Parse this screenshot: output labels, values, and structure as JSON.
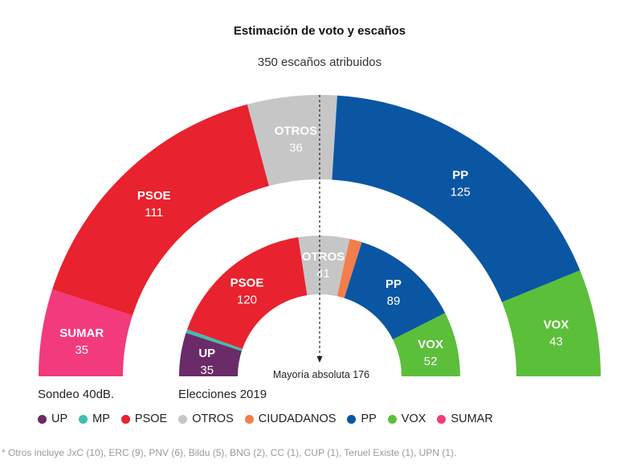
{
  "title": "Estimación de voto y escaños",
  "subtitle": "350 escaños atribuidos",
  "majority_label": "Mayoría absoluta 176",
  "caption_outer": "Sondeo 40dB.",
  "caption_inner": "Elecciones 2019",
  "footnote": "* Otros incluye JxC (10), ERC (9), PNV (6), Bildu (5), BNG (2), CC (1), CUP (1), Teruel Existe (1), UPN (1).",
  "colors": {
    "UP": "#6b2a68",
    "MP": "#3fbfad",
    "PSOE": "#e8222e",
    "OTROS": "#c6c6c6",
    "CIUDADANOS": "#f37d4b",
    "PP": "#0a56a3",
    "VOX": "#5bbf3a",
    "SUMAR": "#f23a7c"
  },
  "legend": [
    "UP",
    "MP",
    "PSOE",
    "OTROS",
    "CIUDADANOS",
    "PP",
    "VOX",
    "SUMAR"
  ],
  "chart_data": [
    {
      "type": "hemicycle",
      "name": "Sondeo 40dB.",
      "total": 350,
      "series": [
        {
          "party": "SUMAR",
          "label": "SUMAR",
          "value": 35
        },
        {
          "party": "PSOE",
          "label": "PSOE",
          "value": 111
        },
        {
          "party": "OTROS",
          "label": "OTROS",
          "value": 36
        },
        {
          "party": "PP",
          "label": "PP",
          "value": 125
        },
        {
          "party": "VOX",
          "label": "VOX",
          "value": 43
        }
      ]
    },
    {
      "type": "hemicycle",
      "name": "Elecciones 2019",
      "total": 350,
      "series": [
        {
          "party": "UP",
          "label": "UP",
          "value": 35
        },
        {
          "party": "MP",
          "label": "",
          "value": 3
        },
        {
          "party": "PSOE",
          "label": "PSOE",
          "value": 120
        },
        {
          "party": "OTROS",
          "label": "OTROS",
          "value": 41
        },
        {
          "party": "CIUDADANOS",
          "label": "",
          "value": 10
        },
        {
          "party": "PP",
          "label": "PP",
          "value": 89
        },
        {
          "party": "VOX",
          "label": "VOX",
          "value": 52
        }
      ]
    }
  ]
}
